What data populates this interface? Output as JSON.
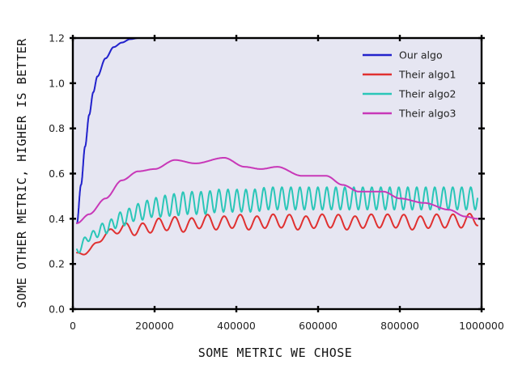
{
  "chart_data": {
    "type": "line",
    "title": "",
    "xlabel": "SOME METRIC WE CHOSE",
    "ylabel": "SOME OTHER METRIC, HIGHER IS BETTER",
    "xlim": [
      0,
      1000000
    ],
    "ylim": [
      0.0,
      1.2
    ],
    "x_ticks": [
      0,
      200000,
      400000,
      600000,
      800000,
      1000000
    ],
    "x_tick_labels": [
      "0",
      "200000",
      "400000",
      "600000",
      "800000",
      "1000000"
    ],
    "y_ticks": [
      0.0,
      0.2,
      0.4,
      0.6,
      0.8,
      1.0,
      1.2
    ],
    "y_tick_labels": [
      "0.0",
      "0.2",
      "0.4",
      "0.6",
      "0.8",
      "1.0",
      "1.2"
    ],
    "grid": false,
    "legend_position": "top-right",
    "background": "#e6e6f2",
    "series": [
      {
        "name": "Our algo",
        "color": "#2222cc",
        "x": [
          10000,
          20000,
          30000,
          40000,
          50000,
          60000,
          80000,
          100000,
          120000,
          140000,
          160000,
          180000
        ],
        "y": [
          0.38,
          0.55,
          0.72,
          0.86,
          0.96,
          1.03,
          1.11,
          1.16,
          1.18,
          1.195,
          1.2,
          1.2
        ]
      },
      {
        "name": "Their algo1",
        "color": "#e03030",
        "x": [
          10000,
          40000,
          80000,
          120000,
          160000,
          200000,
          240000,
          280000,
          320000,
          360000,
          400000,
          440000,
          480000,
          520000,
          560000,
          600000,
          640000,
          680000,
          720000,
          760000,
          800000,
          840000,
          880000,
          920000,
          960000,
          990000
        ],
        "y": [
          0.24,
          0.26,
          0.33,
          0.36,
          0.35,
          0.37,
          0.38,
          0.37,
          0.39,
          0.38,
          0.39,
          0.38,
          0.39,
          0.39,
          0.38,
          0.39,
          0.39,
          0.38,
          0.39,
          0.39,
          0.39,
          0.38,
          0.39,
          0.39,
          0.39,
          0.4
        ]
      },
      {
        "name": "Their algo2",
        "color": "#2ac6b8",
        "x": [
          10000,
          40000,
          80000,
          120000,
          160000,
          200000,
          240000,
          280000,
          320000,
          360000,
          400000,
          440000,
          480000,
          520000,
          560000,
          600000,
          640000,
          680000,
          720000,
          760000,
          800000,
          840000,
          880000,
          920000,
          960000,
          990000
        ],
        "y": [
          0.26,
          0.32,
          0.36,
          0.4,
          0.43,
          0.45,
          0.46,
          0.47,
          0.47,
          0.48,
          0.48,
          0.48,
          0.49,
          0.49,
          0.49,
          0.49,
          0.49,
          0.49,
          0.49,
          0.49,
          0.49,
          0.49,
          0.49,
          0.49,
          0.49,
          0.49
        ]
      },
      {
        "name": "Their algo3",
        "color": "#c838b8",
        "x": [
          10000,
          40000,
          80000,
          120000,
          160000,
          200000,
          250000,
          300000,
          370000,
          420000,
          460000,
          500000,
          560000,
          620000,
          660000,
          700000,
          760000,
          800000,
          860000,
          920000,
          960000,
          990000
        ],
        "y": [
          0.38,
          0.42,
          0.49,
          0.57,
          0.61,
          0.62,
          0.66,
          0.645,
          0.67,
          0.63,
          0.62,
          0.63,
          0.59,
          0.59,
          0.55,
          0.52,
          0.52,
          0.49,
          0.47,
          0.44,
          0.41,
          0.4
        ]
      }
    ]
  }
}
